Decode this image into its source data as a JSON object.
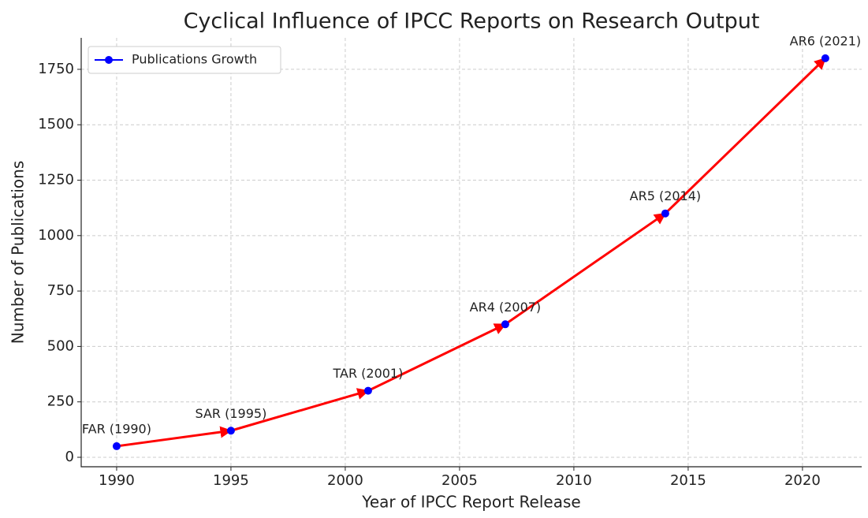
{
  "chart_data": {
    "type": "line",
    "title": "Cyclical Influence of IPCC Reports on Research Output",
    "xlabel": "Year of IPCC Report Release",
    "ylabel": "Number of Publications",
    "x": [
      1990,
      1995,
      2001,
      2007,
      2014,
      2021
    ],
    "series": [
      {
        "name": "Publications Growth",
        "color": "#0000ff",
        "values": [
          50,
          120,
          300,
          600,
          1100,
          1800
        ]
      }
    ],
    "annotations": [
      "FAR (1990)",
      "SAR (1995)",
      "TAR (2001)",
      "AR4 (2007)",
      "AR5 (2014)",
      "AR6 (2021)"
    ],
    "arrow_color": "#ff0000",
    "xlim": [
      1988.45,
      2022.59
    ],
    "xticks": [
      1990,
      1995,
      2000,
      2005,
      2010,
      2015,
      2020
    ],
    "ylim": [
      -42.7,
      1892
    ],
    "yticks": [
      0,
      250,
      500,
      750,
      1000,
      1250,
      1500,
      1750
    ],
    "grid": true,
    "legend": "upper left"
  }
}
